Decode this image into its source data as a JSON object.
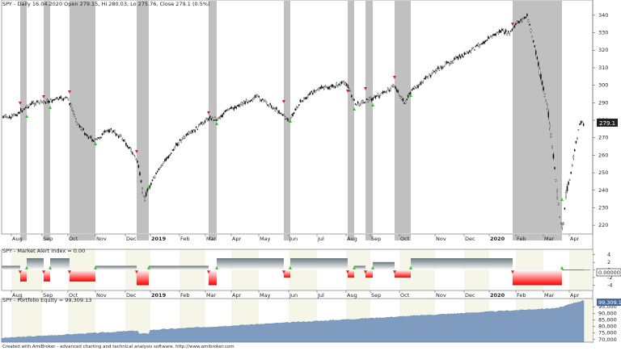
{
  "main_pane": {
    "title": "SPY - Daily 16.04.2020 Open 279.15, Hi 280.03, Lo 275.76, Close 279.1 (0.5%)",
    "last_price_badge": "279.1",
    "y_ticks": [
      "340",
      "330",
      "320",
      "310",
      "300",
      "290",
      "280",
      "270",
      "260",
      "250",
      "240",
      "230",
      "220"
    ]
  },
  "months": [
    "Aug",
    "Sep",
    "Oct",
    "Nov",
    "Dec",
    "2019",
    "Feb",
    "Mar",
    "Apr",
    "May",
    "Jun",
    "Jul",
    "Aug",
    "Sep",
    "Oct",
    "Nov",
    "Dec",
    "2020",
    "Feb",
    "Mar",
    "Apr"
  ],
  "mai_pane": {
    "title": "SPY - Market Alert Index = 0.00",
    "value_badge": "0.00000",
    "y_ticks": [
      "4",
      "2",
      "0",
      "-2",
      "-4"
    ]
  },
  "equity_pane": {
    "title": "SPY - Portfolio Equity = 99,309.13",
    "value_badge": "99,309.1",
    "y_ticks": [
      "95,000",
      "90,000",
      "85,000",
      "80,000",
      "75,000",
      "70,000"
    ]
  },
  "footer": {
    "credit": "Created with AmiBroker - advanced charting and technical analysis software. http://www.amibroker.com"
  },
  "colors": {
    "shade": "#c0c0c0",
    "buy": "#22cc22",
    "sell": "#dd2222",
    "equity": "#7f9bbf",
    "pane_bg": "#ffffff",
    "alt_band": "#f5f5e8"
  },
  "chart_data": {
    "type": "candlestick",
    "title": "SPY - Daily",
    "ylim": [
      215,
      345
    ],
    "price_path": [
      [
        "Jul 2018",
        280
      ],
      [
        "Aug 2018",
        283
      ],
      [
        "Sep 2018",
        290
      ],
      [
        "Oct 2018",
        289
      ],
      [
        "Oct 2018",
        275
      ],
      [
        "Nov 2018",
        272
      ],
      [
        "Dec 2018",
        262
      ],
      [
        "Dec 2018",
        236
      ],
      [
        "2019",
        250
      ],
      [
        "Feb 2019",
        272
      ],
      [
        "Mar 2019",
        279
      ],
      [
        "Apr 2019",
        288
      ],
      [
        "May 2019",
        292
      ],
      [
        "Jun 2019",
        275
      ],
      [
        "Jul 2019",
        298
      ],
      [
        "Aug 2019",
        290
      ],
      [
        "Sep 2019",
        298
      ],
      [
        "Oct 2019",
        291
      ],
      [
        "Nov 2019",
        308
      ],
      [
        "Dec 2019",
        320
      ],
      [
        "2020",
        330
      ],
      [
        "Feb 2020",
        338
      ],
      [
        "Mar 2020",
        280
      ],
      [
        "Mar 2020",
        223
      ],
      [
        "Apr 2020",
        279.1
      ]
    ],
    "equity": {
      "ylim": [
        68000,
        100000
      ],
      "start": 71000,
      "end": 99309.13
    }
  }
}
